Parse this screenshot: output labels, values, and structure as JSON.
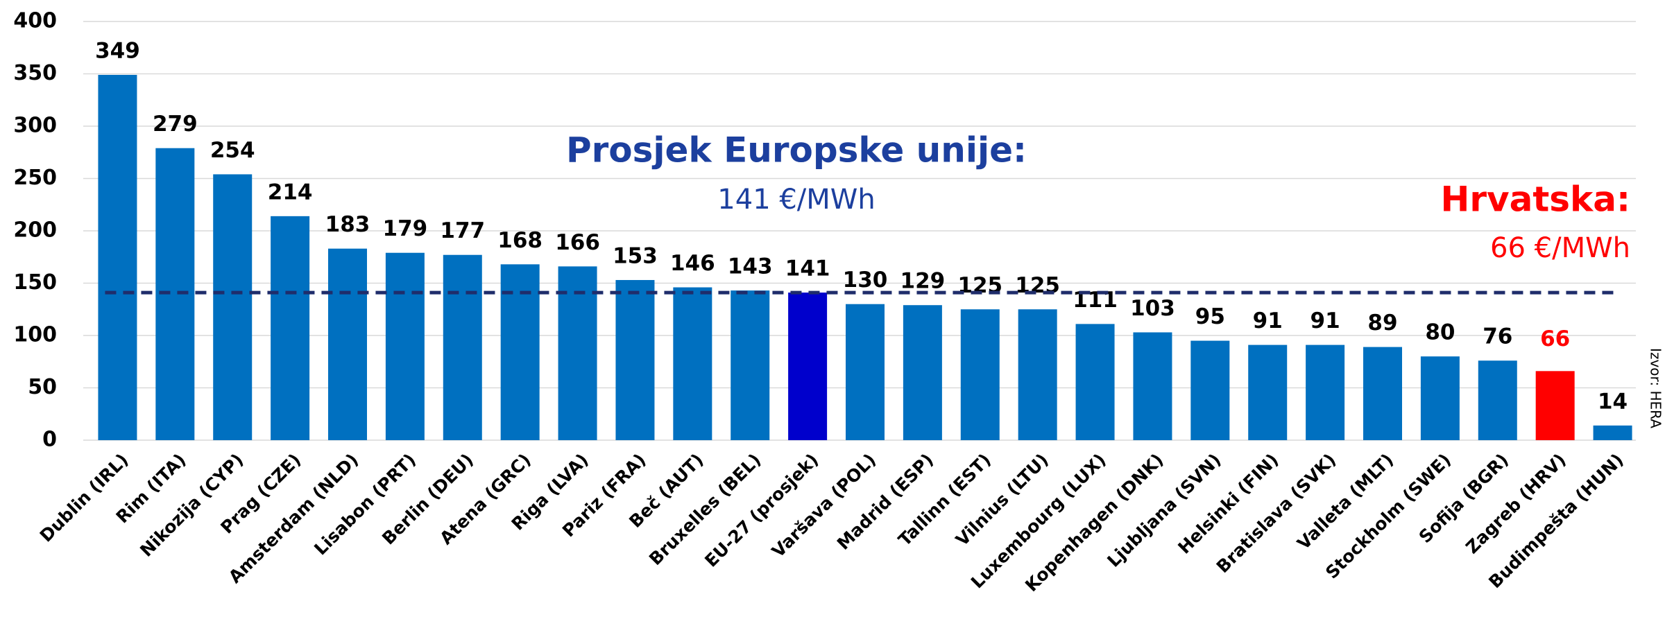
{
  "chart_data": {
    "type": "bar",
    "categories": [
      "Dublin (IRL)",
      "Rim (ITA)",
      "Nikozija (CYP)",
      "Prag (CZE)",
      "Amsterdam (NLD)",
      "Lisabon (PRT)",
      "Berlin (DEU)",
      "Atena (GRC)",
      "Riga (LVA)",
      "Pariz (FRA)",
      "Beč (AUT)",
      "Bruxelles (BEL)",
      "EU-27 (prosjek)",
      "Varšava (POL)",
      "Madrid (ESP)",
      "Tallinn (EST)",
      "Vilnius (LTU)",
      "Luxembourg (LUX)",
      "Kopenhagen (DNK)",
      "Ljubljana (SVN)",
      "Helsinki (FIN)",
      "Bratislava (SVK)",
      "Valleta (MLT)",
      "Stockholm (SWE)",
      "Sofija (BGR)",
      "Zagreb (HRV)",
      "Budimpešta (HUN)"
    ],
    "values": [
      349,
      279,
      254,
      214,
      183,
      179,
      177,
      168,
      166,
      153,
      146,
      143,
      141,
      130,
      129,
      125,
      125,
      111,
      103,
      95,
      91,
      91,
      89,
      80,
      76,
      66,
      14
    ],
    "colors": [
      "#0070c0",
      "#0070c0",
      "#0070c0",
      "#0070c0",
      "#0070c0",
      "#0070c0",
      "#0070c0",
      "#0070c0",
      "#0070c0",
      "#0070c0",
      "#0070c0",
      "#0070c0",
      "#0000cc",
      "#0070c0",
      "#0070c0",
      "#0070c0",
      "#0070c0",
      "#0070c0",
      "#0070c0",
      "#0070c0",
      "#0070c0",
      "#0070c0",
      "#0070c0",
      "#0070c0",
      "#0070c0",
      "#ff0000",
      "#0070c0"
    ],
    "value_label_colors": [
      "#000000",
      "#000000",
      "#000000",
      "#000000",
      "#000000",
      "#000000",
      "#000000",
      "#000000",
      "#000000",
      "#000000",
      "#000000",
      "#000000",
      "#000000",
      "#000000",
      "#000000",
      "#000000",
      "#000000",
      "#000000",
      "#000000",
      "#000000",
      "#000000",
      "#000000",
      "#000000",
      "#000000",
      "#000000",
      "#ff0000",
      "#000000"
    ],
    "ylim": [
      0,
      400
    ],
    "yticks": [
      0,
      50,
      100,
      150,
      200,
      250,
      300,
      350,
      400
    ],
    "grid": true,
    "reference_line": {
      "value": 141,
      "color": "#1f2d6b"
    },
    "annotations": {
      "eu_title": "Prosjek Europske unije:",
      "eu_value": "141 €/MWh",
      "hr_title": "Hrvatska:",
      "hr_value": "66 €/MWh",
      "source": "Izvor: HERA"
    }
  }
}
